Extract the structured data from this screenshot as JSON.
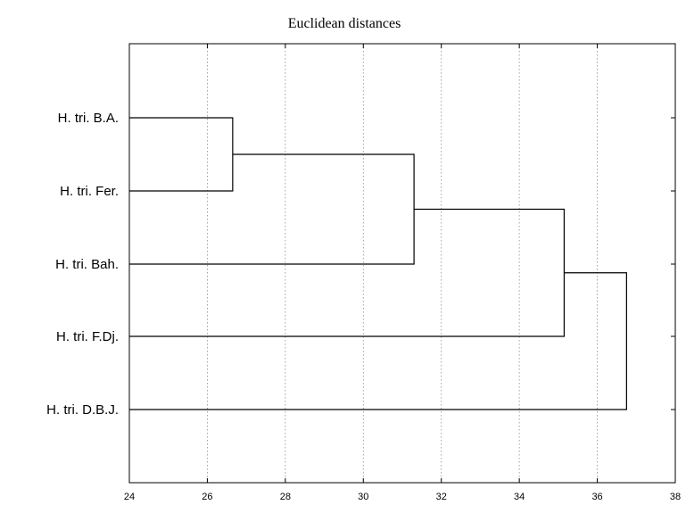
{
  "chart_data": {
    "type": "dendrogram",
    "title": "Euclidean distances",
    "xlabel": "",
    "ylabel": "",
    "xlim": [
      24,
      38
    ],
    "x_ticks": [
      24,
      26,
      28,
      30,
      32,
      34,
      36,
      38
    ],
    "grid": true,
    "leaves": [
      "H. tri. B.A.",
      "H. tri. Fer.",
      "H. tri. Bah.",
      "H. tri. F.Dj.",
      "H. tri. D.B.J."
    ],
    "merges": [
      {
        "a": "leaf:0",
        "b": "leaf:1",
        "distance": 26.65
      },
      {
        "a": "node:0",
        "b": "leaf:2",
        "distance": 31.3
      },
      {
        "a": "node:1",
        "b": "leaf:3",
        "distance": 35.15
      },
      {
        "a": "node:2",
        "b": "leaf:4",
        "distance": 36.75
      }
    ]
  }
}
